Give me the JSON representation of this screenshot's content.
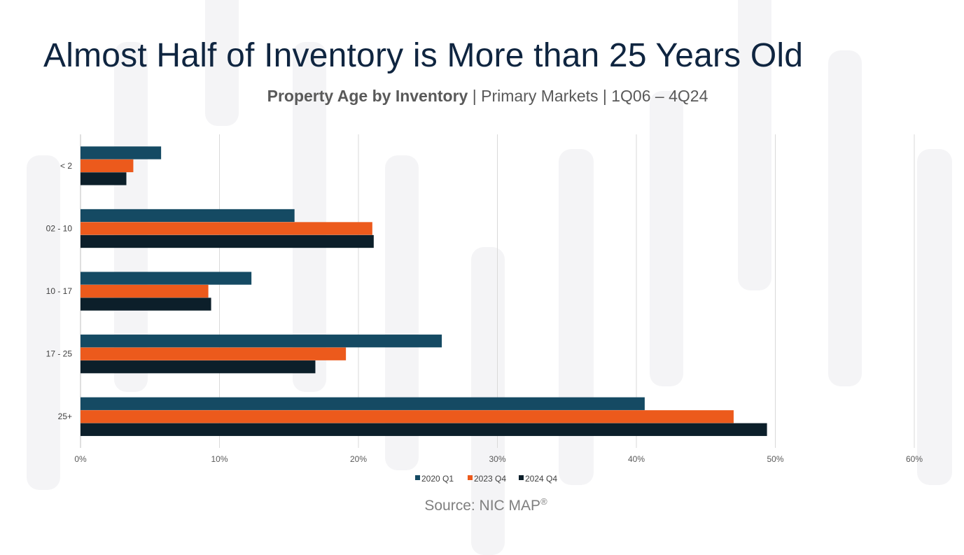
{
  "title": "Almost Half of Inventory is More than 25 Years Old",
  "subtitle": {
    "bold": "Property Age by Inventory",
    "rest": " | Primary Markets | 1Q06 – 4Q24"
  },
  "source": {
    "text": "Source: NIC MAP",
    "mark": "®"
  },
  "chart_data": {
    "type": "bar",
    "orientation": "horizontal",
    "categories": [
      "< 2",
      "02 - 10",
      "10 - 17",
      "17 - 25",
      "25+"
    ],
    "series": [
      {
        "name": "2020 Q1",
        "color": "#154a63",
        "values": [
          5.8,
          15.4,
          12.3,
          26.0,
          40.6
        ]
      },
      {
        "name": "2023 Q4",
        "color": "#ec5a1c",
        "values": [
          3.8,
          21.0,
          9.2,
          19.1,
          47.0
        ]
      },
      {
        "name": "2024 Q4",
        "color": "#0c1f2a",
        "values": [
          3.3,
          21.1,
          9.4,
          16.9,
          49.4
        ]
      }
    ],
    "xlim": [
      0,
      60
    ],
    "xticks": [
      "0%",
      "10%",
      "20%",
      "30%",
      "40%",
      "50%",
      "60%"
    ],
    "xtick_values": [
      0,
      10,
      20,
      30,
      40,
      50,
      60
    ],
    "grid": true,
    "legend_position": "bottom"
  }
}
